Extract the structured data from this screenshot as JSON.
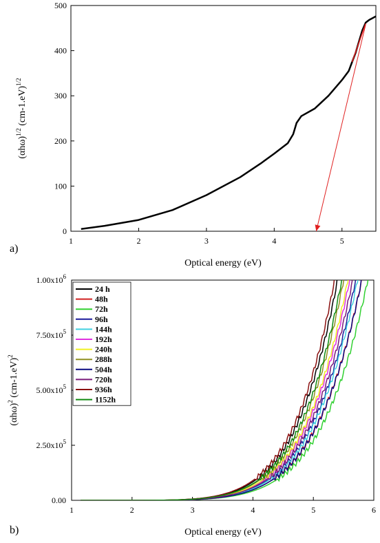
{
  "chart_data": [
    {
      "type": "line",
      "panel_label": "a)",
      "xlabel": "Optical energy (eV)",
      "ylabel": "(αhω)^1/2 (cm-1.eV)^1/2",
      "ylabel_parts": {
        "base": "(αhω)",
        "exp1": "1/2",
        "mid": " (cm-1.eV)",
        "exp2": "1/2"
      },
      "xlim": [
        1,
        5.5
      ],
      "ylim": [
        0,
        500
      ],
      "xticks": [
        1,
        2,
        3,
        4,
        5
      ],
      "yticks": [
        0,
        100,
        200,
        300,
        400,
        500
      ],
      "grid": false,
      "series": [
        {
          "color": "#000000",
          "x": [
            1.15,
            1.5,
            2.0,
            2.5,
            3.0,
            3.5,
            3.8,
            4.0,
            4.2,
            4.28,
            4.33,
            4.4,
            4.6,
            4.8,
            5.0,
            5.1,
            5.15,
            5.2,
            5.25,
            5.3,
            5.35,
            5.4,
            5.45,
            5.5
          ],
          "y": [
            5,
            12,
            25,
            47,
            80,
            120,
            150,
            172,
            195,
            215,
            240,
            255,
            272,
            300,
            335,
            355,
            375,
            395,
            420,
            445,
            462,
            468,
            472,
            476
          ]
        }
      ],
      "annotations": [
        {
          "type": "arrow",
          "color": "#e02020",
          "from": [
            5.35,
            458
          ],
          "to": [
            4.62,
            0
          ]
        },
        {
          "type": "fit_line",
          "color": "#e02020",
          "x": [
            5.15,
            5.35
          ],
          "y": [
            375,
            460
          ]
        }
      ]
    },
    {
      "type": "line",
      "panel_label": "b)",
      "xlabel": "Optical energy (eV)",
      "ylabel": "(αhω)^2 (cm-1.eV)^2",
      "ylabel_parts": {
        "base": "(αhω)",
        "exp1": "2",
        "mid": " (cm-1.eV)",
        "exp2": "2"
      },
      "xlim": [
        1,
        6
      ],
      "ylim": [
        0,
        1000000
      ],
      "xticks": [
        1,
        2,
        3,
        4,
        5,
        6
      ],
      "yticks": [
        0,
        250000,
        500000,
        750000,
        1000000
      ],
      "ytick_labels": [
        {
          "mant": "0.00",
          "exp": ""
        },
        {
          "mant": "2.50x10",
          "exp": "5"
        },
        {
          "mant": "5.00x10",
          "exp": "5"
        },
        {
          "mant": "7.50x10",
          "exp": "5"
        },
        {
          "mant": "1.00x10",
          "exp": "6"
        }
      ],
      "legend_position": "top-left",
      "grid": false,
      "series": [
        {
          "name": "24 h",
          "color": "#000000",
          "x0": 1.15,
          "a": 2.05
        },
        {
          "name": "48h",
          "color": "#d02020",
          "x0": 1.15,
          "a": 2.45
        },
        {
          "name": "72h",
          "color": "#30d030",
          "x0": 1.15,
          "a": 2.55
        },
        {
          "name": "96h",
          "color": "#1a1a9a",
          "x0": 1.15,
          "a": 2.35
        },
        {
          "name": "144h",
          "color": "#40d0e0",
          "x0": 1.15,
          "a": 2.38
        },
        {
          "name": "192h",
          "color": "#e030e0",
          "x0": 1.15,
          "a": 2.25
        },
        {
          "name": "240h",
          "color": "#f0f020",
          "x0": 1.15,
          "a": 2.22
        },
        {
          "name": "288h",
          "color": "#909020",
          "x0": 1.15,
          "a": 2.15
        },
        {
          "name": "504h",
          "color": "#0a0a80",
          "x0": 1.15,
          "a": 2.45
        },
        {
          "name": "720h",
          "color": "#7a1a7a",
          "x0": 1.15,
          "a": 2.3
        },
        {
          "name": "936h",
          "color": "#8a1010",
          "x0": 1.15,
          "a": 2.0
        },
        {
          "name": "1152h",
          "color": "#108a10",
          "x0": 1.15,
          "a": 2.12
        }
      ]
    }
  ]
}
